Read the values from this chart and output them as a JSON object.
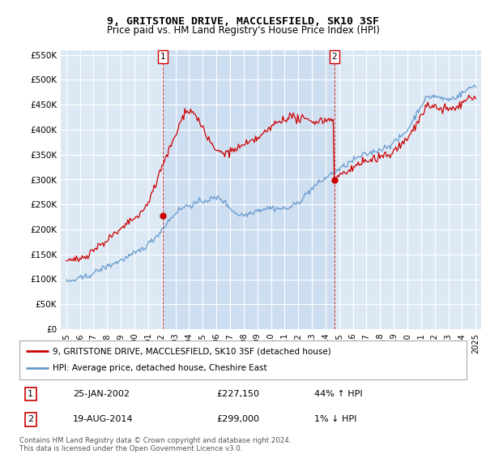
{
  "title": "9, GRITSTONE DRIVE, MACCLESFIELD, SK10 3SF",
  "subtitle": "Price paid vs. HM Land Registry's House Price Index (HPI)",
  "ylim": [
    0,
    560000
  ],
  "yticks": [
    0,
    50000,
    100000,
    150000,
    200000,
    250000,
    300000,
    350000,
    400000,
    450000,
    500000,
    550000
  ],
  "ytick_labels": [
    "£0",
    "£50K",
    "£100K",
    "£150K",
    "£200K",
    "£250K",
    "£300K",
    "£350K",
    "£400K",
    "£450K",
    "£500K",
    "£550K"
  ],
  "bg_color": "#dce9f5",
  "shade_color": "#c5d8ef",
  "grid_color": "#ffffff",
  "line1_color": "#cc0000",
  "line2_color": "#6699cc",
  "sale1_date": 2002.07,
  "sale1_price": 227150,
  "sale2_date": 2014.64,
  "sale2_price": 299000,
  "legend_line1": "9, GRITSTONE DRIVE, MACCLESFIELD, SK10 3SF (detached house)",
  "legend_line2": "HPI: Average price, detached house, Cheshire East",
  "table_row1": [
    "1",
    "25-JAN-2002",
    "£227,150",
    "44% ↑ HPI"
  ],
  "table_row2": [
    "2",
    "19-AUG-2014",
    "£299,000",
    "1% ↓ HPI"
  ],
  "footnote": "Contains HM Land Registry data © Crown copyright and database right 2024.\nThis data is licensed under the Open Government Licence v3.0."
}
